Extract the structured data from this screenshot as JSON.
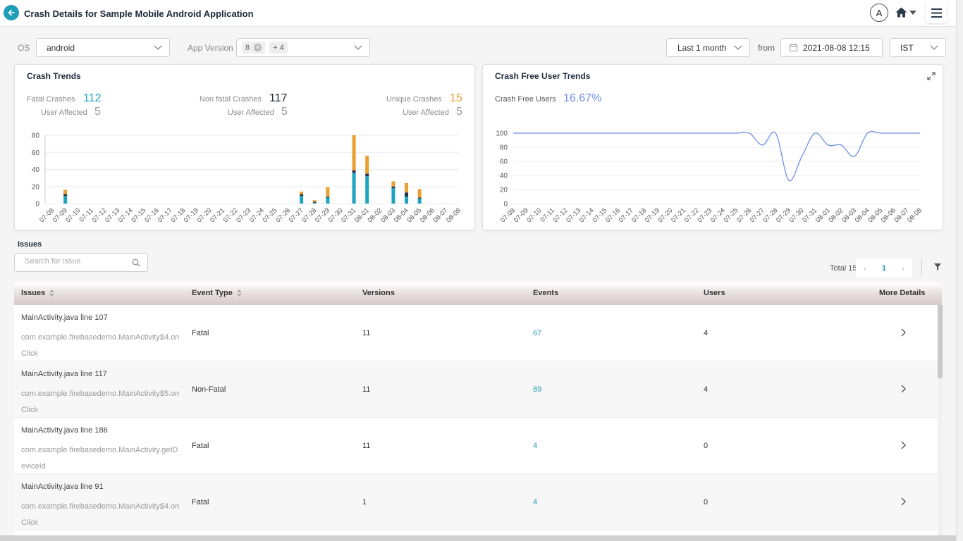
{
  "header": {
    "title": "Crash Details for Sample Mobile Android Application",
    "avatar_initial": "A"
  },
  "filters": {
    "os_label": "OS",
    "os_value": "android",
    "app_version_label": "App Version",
    "app_version_chip": "8",
    "app_version_more": "+ 4",
    "range_value": "Last 1 month",
    "from_label": "from",
    "from_value": "2021-08-08 12:15",
    "tz_value": "IST"
  },
  "crash_trends": {
    "title": "Crash Trends",
    "fatal_label": "Fatal Crashes",
    "fatal_value": "112",
    "fatal_users_label": "User Affected",
    "fatal_users_value": "5",
    "nonfatal_label": "Non fatal Crashes",
    "nonfatal_value": "117",
    "nonfatal_users_label": "User Affected",
    "nonfatal_users_value": "5",
    "unique_label": "Unique Crashes",
    "unique_value": "15",
    "unique_users_label": "User Affected",
    "unique_users_value": "5"
  },
  "crash_free": {
    "title": "Crash Free User Trends",
    "label": "Crash Free Users",
    "value": "16.67%"
  },
  "chart_data": [
    {
      "type": "bar",
      "stacked": true,
      "categories": [
        "07-08",
        "07-09",
        "07-10",
        "07-11",
        "07-12",
        "07-13",
        "07-14",
        "07-15",
        "07-16",
        "07-17",
        "07-18",
        "07-19",
        "07-20",
        "07-21",
        "07-22",
        "07-23",
        "07-24",
        "07-25",
        "07-26",
        "07-27",
        "07-28",
        "07-29",
        "07-30",
        "07-31",
        "08-01",
        "08-02",
        "08-03",
        "08-04",
        "08-05",
        "08-06",
        "08-07",
        "08-08"
      ],
      "series": [
        {
          "color": "#1ea5bd",
          "values": [
            0,
            9,
            0,
            0,
            0,
            0,
            0,
            0,
            0,
            0,
            0,
            0,
            0,
            0,
            0,
            0,
            0,
            0,
            0,
            9,
            1,
            7,
            0,
            36,
            32,
            0,
            18,
            8,
            6,
            0,
            0,
            0
          ]
        },
        {
          "color": "#243150",
          "values": [
            0,
            2,
            0,
            0,
            0,
            0,
            0,
            0,
            0,
            0,
            0,
            0,
            0,
            0,
            0,
            0,
            0,
            0,
            0,
            2,
            1,
            1,
            0,
            3,
            3,
            0,
            2,
            5,
            1,
            0,
            0,
            0
          ]
        },
        {
          "color": "#e8a031",
          "values": [
            0,
            5,
            0,
            0,
            0,
            0,
            0,
            0,
            0,
            0,
            0,
            0,
            0,
            0,
            0,
            0,
            0,
            0,
            0,
            3,
            2,
            11,
            0,
            41,
            21,
            0,
            6,
            11,
            10,
            0,
            0,
            0
          ]
        }
      ],
      "ylim": [
        0,
        80
      ],
      "yticks": [
        0,
        20,
        40,
        60,
        80
      ],
      "grid": true
    },
    {
      "type": "line",
      "x": [
        "07-08",
        "07-09",
        "07-10",
        "07-11",
        "07-12",
        "07-13",
        "07-14",
        "07-15",
        "07-16",
        "07-17",
        "07-18",
        "07-19",
        "07-20",
        "07-21",
        "07-22",
        "07-23",
        "07-24",
        "07-25",
        "07-26",
        "07-27",
        "07-28",
        "07-29",
        "07-30",
        "07-31",
        "08-01",
        "08-02",
        "08-03",
        "08-04",
        "08-05",
        "08-06",
        "08-07",
        "08-08"
      ],
      "series": [
        {
          "color": "#6f8fe8",
          "values": [
            100,
            100,
            100,
            100,
            100,
            100,
            100,
            100,
            100,
            100,
            100,
            100,
            100,
            100,
            100,
            100,
            100,
            100,
            100,
            83,
            100,
            33,
            67,
            100,
            83,
            83,
            67,
            100,
            100,
            100,
            100,
            100
          ]
        }
      ],
      "ylim": [
        0,
        100
      ],
      "yticks": [
        0,
        20,
        40,
        60,
        80,
        100
      ],
      "grid": true
    }
  ],
  "issues": {
    "heading": "Issues",
    "search_placeholder": "Search for issue",
    "total": "Total 15",
    "current_page": "1",
    "columns": [
      "Issues",
      "Event Type",
      "Versions",
      "Events",
      "Users",
      "More Details"
    ],
    "rows": [
      {
        "title": "MainActivity.java line 107",
        "sub": "com.example.firebasedemo.MainActivity$4.onClick",
        "type": "Fatal",
        "versions": "11",
        "events": "67",
        "users": "4"
      },
      {
        "title": "MainActivity.java line 117",
        "sub": "com.example.firebasedemo.MainActivity$5.onClick",
        "type": "Non-Fatal",
        "versions": "11",
        "events": "89",
        "users": "4"
      },
      {
        "title": "MainActivity.java line 186",
        "sub": "com.example.firebasedemo.MainActivity.getDeviceId",
        "type": "Fatal",
        "versions": "11",
        "events": "4",
        "users": "0"
      },
      {
        "title": "MainActivity.java line 91",
        "sub": "com.example.firebasedemo.MainActivity$4.onClick",
        "type": "Fatal",
        "versions": "1",
        "events": "4",
        "users": "0"
      }
    ]
  }
}
